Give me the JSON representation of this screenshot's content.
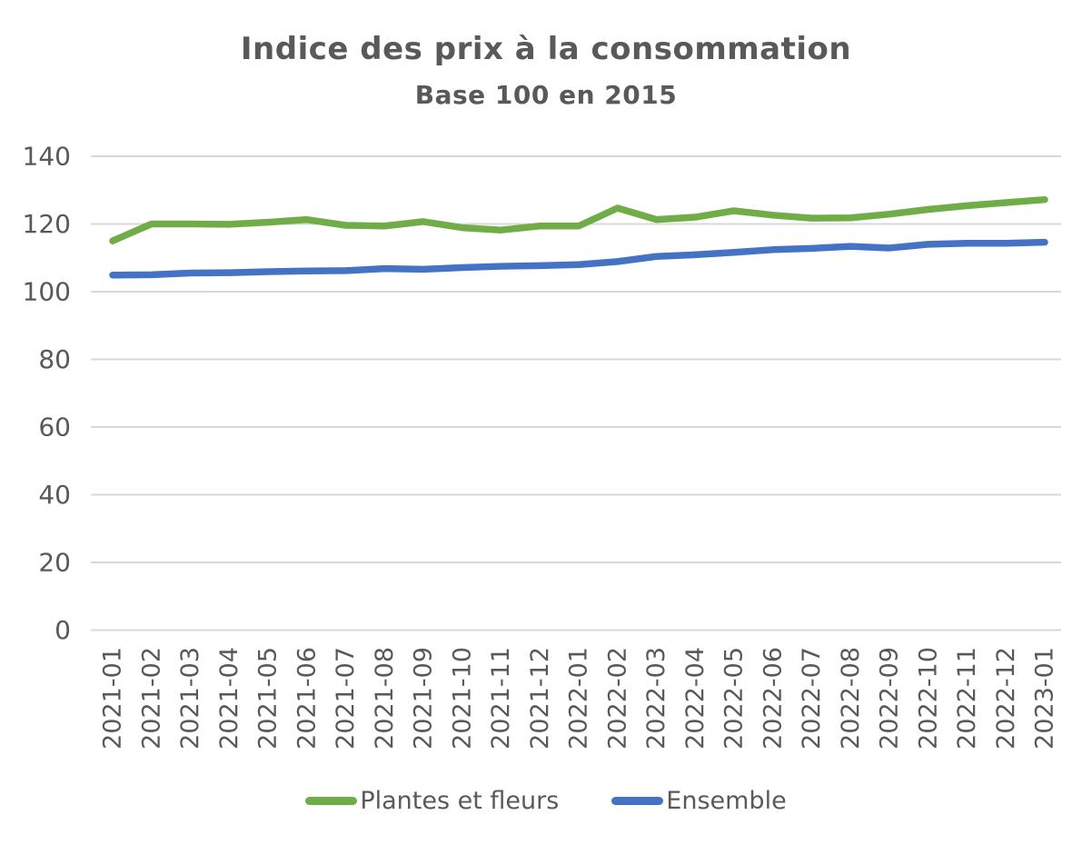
{
  "title": "Indice des prix à la consommation",
  "subtitle": "Base 100 en 2015",
  "colors": {
    "plantes_et_fleurs": "#70ad47",
    "ensemble": "#4472c4",
    "text": "#595959",
    "gridline": "#d9d9d9",
    "background": "#ffffff"
  },
  "legend": {
    "items": [
      {
        "label": "Plantes et fleurs",
        "color": "#70ad47"
      },
      {
        "label": "Ensemble",
        "color": "#4472c4"
      }
    ]
  },
  "chart_data": {
    "type": "line",
    "title": "Indice des prix à la consommation",
    "subtitle": "Base 100 en 2015",
    "grid": true,
    "legend_position": "bottom",
    "ylim": [
      0,
      140
    ],
    "yticks": [
      0,
      20,
      40,
      60,
      80,
      100,
      120,
      140
    ],
    "categories": [
      "2021-01",
      "2021-02",
      "2021-03",
      "2021-04",
      "2021-05",
      "2021-06",
      "2021-07",
      "2021-08",
      "2021-09",
      "2021-10",
      "2021-11",
      "2021-12",
      "2022-01",
      "2022-02",
      "2022-03",
      "2022-04",
      "2022-05",
      "2022-06",
      "2022-07",
      "2022-08",
      "2022-09",
      "2022-10",
      "2022-11",
      "2022-12",
      "2023-01"
    ],
    "series": [
      {
        "name": "Plantes et fleurs",
        "color": "#70ad47",
        "values": [
          115.0,
          120.0,
          120.0,
          119.9,
          120.5,
          121.3,
          119.6,
          119.4,
          120.7,
          118.9,
          118.2,
          119.4,
          119.4,
          124.7,
          121.3,
          122.0,
          123.9,
          122.6,
          121.7,
          121.8,
          122.9,
          124.3,
          125.4,
          126.3,
          127.2
        ]
      },
      {
        "name": "Ensemble",
        "color": "#4472c4",
        "values": [
          104.9,
          105.0,
          105.5,
          105.6,
          105.9,
          106.1,
          106.2,
          106.8,
          106.6,
          107.1,
          107.5,
          107.7,
          108.0,
          108.9,
          110.4,
          110.9,
          111.6,
          112.4,
          112.8,
          113.4,
          112.9,
          114.0,
          114.3,
          114.3,
          114.6
        ]
      }
    ]
  }
}
